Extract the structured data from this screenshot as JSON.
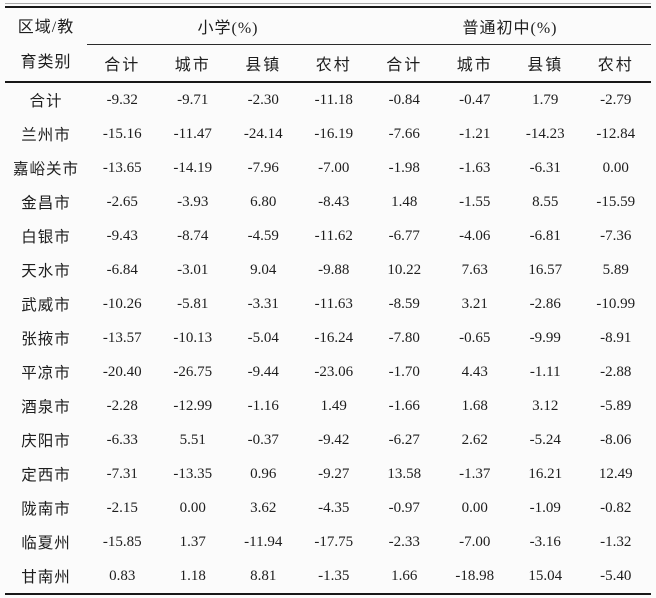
{
  "table": {
    "corner_header": {
      "line1": "区域/教",
      "line2": "育类别"
    },
    "col_groups": [
      {
        "label": "小学(%)",
        "sub_columns": [
          "合计",
          "城市",
          "县镇",
          "农村"
        ]
      },
      {
        "label": "普通初中(%)",
        "sub_columns": [
          "合计",
          "城市",
          "县镇",
          "农村"
        ]
      }
    ],
    "rows": [
      {
        "region": "合计",
        "values": [
          "-9.32",
          "-9.71",
          "-2.30",
          "-11.18",
          "-0.84",
          "-0.47",
          "1.79",
          "-2.79"
        ]
      },
      {
        "region": "兰州市",
        "values": [
          "-15.16",
          "-11.47",
          "-24.14",
          "-16.19",
          "-7.66",
          "-1.21",
          "-14.23",
          "-12.84"
        ]
      },
      {
        "region": "嘉峪关市",
        "values": [
          "-13.65",
          "-14.19",
          "-7.96",
          "-7.00",
          "-1.98",
          "-1.63",
          "-6.31",
          "0.00"
        ]
      },
      {
        "region": "金昌市",
        "values": [
          "-2.65",
          "-3.93",
          "6.80",
          "-8.43",
          "1.48",
          "-1.55",
          "8.55",
          "-15.59"
        ]
      },
      {
        "region": "白银市",
        "values": [
          "-9.43",
          "-8.74",
          "-4.59",
          "-11.62",
          "-6.77",
          "-4.06",
          "-6.81",
          "-7.36"
        ]
      },
      {
        "region": "天水市",
        "values": [
          "-6.84",
          "-3.01",
          "9.04",
          "-9.88",
          "10.22",
          "7.63",
          "16.57",
          "5.89"
        ]
      },
      {
        "region": "武威市",
        "values": [
          "-10.26",
          "-5.81",
          "-3.31",
          "-11.63",
          "-8.59",
          "3.21",
          "-2.86",
          "-10.99"
        ]
      },
      {
        "region": "张掖市",
        "values": [
          "-13.57",
          "-10.13",
          "-5.04",
          "-16.24",
          "-7.80",
          "-0.65",
          "-9.99",
          "-8.91"
        ]
      },
      {
        "region": "平凉市",
        "values": [
          "-20.40",
          "-26.75",
          "-9.44",
          "-23.06",
          "-1.70",
          "4.43",
          "-1.11",
          "-2.88"
        ]
      },
      {
        "region": "酒泉市",
        "values": [
          "-2.28",
          "-12.99",
          "-1.16",
          "1.49",
          "-1.66",
          "1.68",
          "3.12",
          "-5.89"
        ]
      },
      {
        "region": "庆阳市",
        "values": [
          "-6.33",
          "5.51",
          "-0.37",
          "-9.42",
          "-6.27",
          "2.62",
          "-5.24",
          "-8.06"
        ]
      },
      {
        "region": "定西市",
        "values": [
          "-7.31",
          "-13.35",
          "0.96",
          "-9.27",
          "13.58",
          "-1.37",
          "16.21",
          "12.49"
        ]
      },
      {
        "region": "陇南市",
        "values": [
          "-2.15",
          "0.00",
          "3.62",
          "-4.35",
          "-0.97",
          "0.00",
          "-1.09",
          "-0.82"
        ]
      },
      {
        "region": "临夏州",
        "values": [
          "-15.85",
          "1.37",
          "-11.94",
          "-17.75",
          "-2.33",
          "-7.00",
          "-3.16",
          "-1.32"
        ]
      },
      {
        "region": "甘南州",
        "values": [
          "0.83",
          "1.18",
          "8.81",
          "-1.35",
          "1.66",
          "-18.98",
          "15.04",
          "-5.40"
        ]
      }
    ]
  },
  "colors": {
    "background": "#fbfbfb",
    "text": "#1d1d1d",
    "rule_dark": "#181818",
    "rule_light": "#a8a8a8"
  }
}
